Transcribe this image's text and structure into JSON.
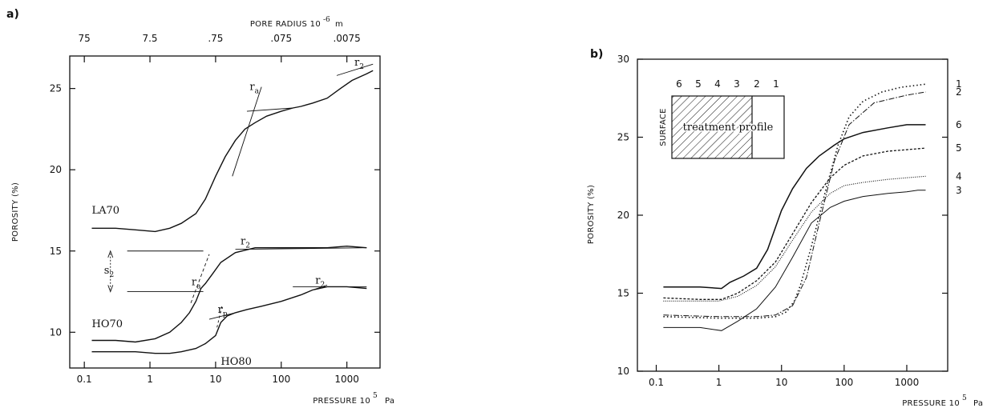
{
  "chart_data": [
    {
      "panel_label": "a)",
      "type": "line",
      "xscale": "log",
      "xlabel": "PRESSURE 10",
      "xlabel_exp": "5",
      "xlabel_unit": "Pa",
      "ylabel": "POROSITY (%)",
      "top_label": "PORE RADIUS 10",
      "top_label_exp": "-6",
      "top_label_unit": "m",
      "xlim": [
        0.06,
        3200
      ],
      "ylim": [
        7.8,
        27
      ],
      "x_ticks": [
        0.1,
        1,
        10,
        100,
        1000
      ],
      "x_tick_labels": [
        "0.1",
        "1",
        "10",
        "100",
        "1000"
      ],
      "y_ticks": [
        10,
        15,
        20,
        25
      ],
      "y_tick_labels": [
        "10",
        "15",
        "20",
        "25"
      ],
      "top_ticks": [
        0.1,
        1,
        10,
        100,
        1000
      ],
      "top_tick_labels": [
        "75",
        "7.5",
        ".75",
        ".075",
        ".0075"
      ],
      "series": [
        {
          "name": "LA70",
          "x": [
            0.13,
            0.3,
            0.6,
            1.2,
            2,
            3,
            5,
            7,
            10,
            14,
            20,
            28,
            40,
            60,
            100,
            150,
            200,
            300,
            500,
            800,
            1200,
            2000,
            2500
          ],
          "y": [
            16.4,
            16.4,
            16.3,
            16.2,
            16.4,
            16.7,
            17.3,
            18.2,
            19.6,
            20.8,
            21.8,
            22.5,
            22.9,
            23.3,
            23.6,
            23.8,
            23.9,
            24.1,
            24.4,
            25.0,
            25.5,
            25.9,
            26.1
          ]
        },
        {
          "name": "HO70",
          "x": [
            0.13,
            0.3,
            0.6,
            1.2,
            2,
            3,
            4,
            5,
            6,
            7,
            9,
            12,
            20,
            40,
            70,
            100,
            200,
            500,
            1000,
            2000
          ],
          "y": [
            9.5,
            9.5,
            9.4,
            9.6,
            10.0,
            10.6,
            11.2,
            11.9,
            12.7,
            13.0,
            13.6,
            14.3,
            14.9,
            15.2,
            15.2,
            15.2,
            15.2,
            15.2,
            15.3,
            15.2
          ]
        },
        {
          "name": "HO80",
          "x": [
            0.13,
            0.3,
            0.6,
            1.2,
            2,
            3,
            5,
            7,
            10,
            12,
            15,
            20,
            30,
            50,
            100,
            200,
            300,
            500,
            1000,
            2000
          ],
          "y": [
            8.8,
            8.8,
            8.8,
            8.7,
            8.7,
            8.8,
            9.0,
            9.3,
            9.8,
            10.6,
            11.0,
            11.2,
            11.4,
            11.6,
            11.9,
            12.3,
            12.6,
            12.8,
            12.8,
            12.7
          ]
        }
      ],
      "annotations": [
        {
          "text": "r",
          "sub": "a",
          "x": 33,
          "y": 24.9
        },
        {
          "text": "r",
          "sub": "2",
          "x": 1300,
          "y": 26.4
        },
        {
          "text": "r",
          "sub": "2",
          "x": 24,
          "y": 15.4
        },
        {
          "text": "r",
          "sub": "a",
          "x": 4.3,
          "y": 12.9
        },
        {
          "text": "r",
          "sub": "p",
          "x": 10.8,
          "y": 11.2
        },
        {
          "text": "r",
          "sub": "2",
          "x": 330,
          "y": 13.0
        },
        {
          "text": "s",
          "sub": "2",
          "x": 0.2,
          "y": 13.6
        }
      ]
    },
    {
      "panel_label": "b)",
      "type": "line",
      "xscale": "log",
      "xlabel": "PRESSURE 10",
      "xlabel_exp": "5",
      "xlabel_unit": "Pa",
      "ylabel": "POROSITY (%)",
      "xlim": [
        0.05,
        4500
      ],
      "ylim": [
        10,
        30
      ],
      "x_ticks": [
        0.1,
        1,
        10,
        100,
        1000
      ],
      "x_tick_labels": [
        "0.1",
        "1",
        "10",
        "100",
        "1000"
      ],
      "y_ticks": [
        10,
        15,
        20,
        25,
        30
      ],
      "y_tick_labels": [
        "10",
        "15",
        "20",
        "25",
        "30"
      ],
      "inset": {
        "labels": [
          "6",
          "5",
          "4",
          "3",
          "2",
          "1"
        ],
        "box_text": "treatment profile",
        "side_text": "SURFACE"
      },
      "series": [
        {
          "name": "1",
          "x": [
            0.13,
            1,
            2,
            4,
            8,
            12,
            16,
            20,
            30,
            50,
            80,
            120,
            200,
            400,
            800,
            2000
          ],
          "y": [
            13.5,
            13.4,
            13.4,
            13.4,
            13.5,
            13.8,
            14.5,
            15.5,
            18.0,
            21.5,
            24.5,
            26.3,
            27.3,
            27.9,
            28.2,
            28.4
          ]
        },
        {
          "name": "2",
          "x": [
            0.13,
            1,
            2,
            4,
            8,
            15,
            25,
            40,
            70,
            120,
            300,
            1000,
            2000
          ],
          "y": [
            13.6,
            13.5,
            13.5,
            13.5,
            13.6,
            14.2,
            16.0,
            19.5,
            23.5,
            25.8,
            27.2,
            27.7,
            27.9
          ]
        },
        {
          "name": "6",
          "x": [
            0.13,
            0.5,
            1.1,
            1.5,
            2.5,
            4,
            6,
            10,
            15,
            25,
            40,
            70,
            100,
            200,
            500,
            1000,
            2000
          ],
          "y": [
            15.4,
            15.4,
            15.3,
            15.7,
            16.1,
            16.6,
            17.8,
            20.3,
            21.7,
            23.0,
            23.8,
            24.5,
            24.9,
            25.3,
            25.6,
            25.8,
            25.8
          ]
        },
        {
          "name": "5",
          "x": [
            0.13,
            0.5,
            1.1,
            2,
            4,
            8,
            15,
            30,
            60,
            100,
            200,
            500,
            1000,
            2000
          ],
          "y": [
            14.7,
            14.6,
            14.6,
            15.0,
            15.8,
            17.0,
            18.8,
            20.8,
            22.4,
            23.2,
            23.8,
            24.1,
            24.2,
            24.3
          ]
        },
        {
          "name": "4",
          "x": [
            0.13,
            0.5,
            1,
            2,
            4,
            8,
            15,
            30,
            60,
            100,
            200,
            500,
            1000,
            2000
          ],
          "y": [
            14.5,
            14.5,
            14.5,
            14.8,
            15.5,
            16.7,
            18.4,
            20.2,
            21.4,
            21.9,
            22.1,
            22.3,
            22.4,
            22.5
          ]
        },
        {
          "name": "3",
          "x": [
            0.13,
            0.5,
            1.1,
            2,
            4,
            8,
            15,
            30,
            60,
            100,
            200,
            500,
            1000,
            1500,
            2000
          ],
          "y": [
            12.8,
            12.8,
            12.6,
            13.2,
            14.0,
            15.4,
            17.3,
            19.5,
            20.5,
            20.9,
            21.2,
            21.4,
            21.5,
            21.6,
            21.6
          ]
        }
      ]
    }
  ]
}
